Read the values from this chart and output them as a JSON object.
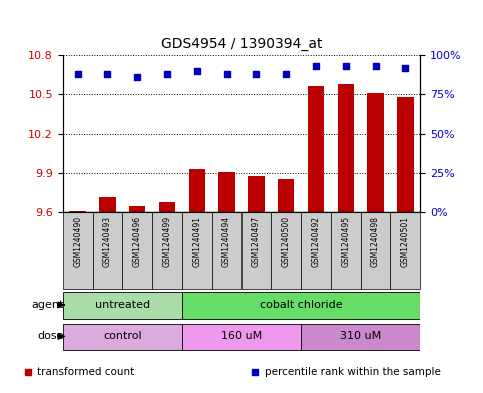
{
  "title": "GDS4954 / 1390394_at",
  "samples": [
    "GSM1240490",
    "GSM1240493",
    "GSM1240496",
    "GSM1240499",
    "GSM1240491",
    "GSM1240494",
    "GSM1240497",
    "GSM1240500",
    "GSM1240492",
    "GSM1240495",
    "GSM1240498",
    "GSM1240501"
  ],
  "bar_values": [
    9.61,
    9.72,
    9.65,
    9.68,
    9.93,
    9.91,
    9.88,
    9.85,
    10.56,
    10.58,
    10.51,
    10.48
  ],
  "dot_values": [
    88,
    88,
    86,
    88,
    90,
    88,
    88,
    88,
    93,
    93,
    93,
    92
  ],
  "ylim_left": [
    9.6,
    10.8
  ],
  "ylim_right": [
    0,
    100
  ],
  "yticks_left": [
    9.6,
    9.9,
    10.2,
    10.5,
    10.8
  ],
  "yticks_right": [
    0,
    25,
    50,
    75,
    100
  ],
  "ytick_labels_right": [
    "0%",
    "25%",
    "50%",
    "75%",
    "100%"
  ],
  "bar_color": "#bb0000",
  "dot_color": "#0000bb",
  "bar_width": 0.55,
  "agent_groups": [
    {
      "label": "untreated",
      "start": 0,
      "end": 3,
      "color": "#aaddaa"
    },
    {
      "label": "cobalt chloride",
      "start": 4,
      "end": 11,
      "color": "#66dd66"
    }
  ],
  "dose_groups": [
    {
      "label": "control",
      "start": 0,
      "end": 3,
      "color": "#ddaadd"
    },
    {
      "label": "160 uM",
      "start": 4,
      "end": 7,
      "color": "#ee99ee"
    },
    {
      "label": "310 uM",
      "start": 8,
      "end": 11,
      "color": "#cc88cc"
    }
  ],
  "legend_items": [
    {
      "label": "transformed count",
      "color": "#bb0000",
      "marker": "s"
    },
    {
      "label": "percentile rank within the sample",
      "color": "#0000bb",
      "marker": "s"
    }
  ],
  "bg_color": "#ffffff",
  "tick_label_color_left": "#cc0000",
  "tick_label_color_right": "#0000cc",
  "sample_box_color": "#cccccc",
  "agent_label": "agent",
  "dose_label": "dose"
}
